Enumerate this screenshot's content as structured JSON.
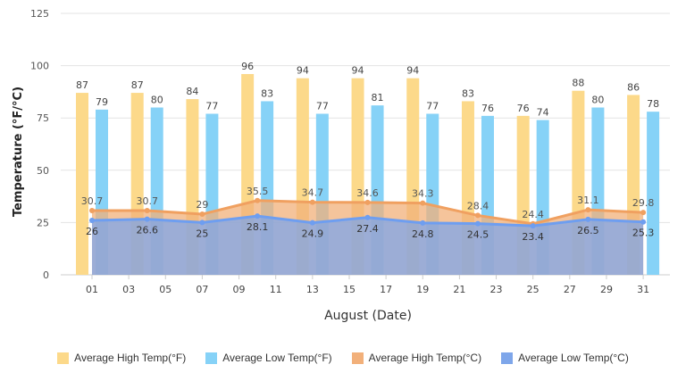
{
  "chart_data": {
    "type": "bar",
    "xlabel": "August (Date)",
    "ylabel": "Temperature (°F/°C)",
    "ylim": [
      0,
      125
    ],
    "yticks": [
      "0",
      "25",
      "50",
      "75",
      "100",
      "125"
    ],
    "xticks": [
      "01",
      "03",
      "05",
      "07",
      "09",
      "11",
      "13",
      "15",
      "17",
      "19",
      "21",
      "23",
      "25",
      "27",
      "29",
      "31"
    ],
    "grid": true,
    "legend_position": "bottom",
    "x": [
      1,
      4,
      7,
      10,
      13,
      16,
      19,
      22,
      25,
      28,
      31
    ],
    "series": [
      {
        "name": "Average High Temp(°F)",
        "kind": "bar",
        "color": "#fcd98a",
        "values": [
          87,
          87,
          84,
          96,
          94,
          94,
          94,
          83,
          76,
          88,
          86
        ]
      },
      {
        "name": "Average Low Temp(°F)",
        "kind": "bar",
        "color": "#86d2f7",
        "values": [
          79,
          80,
          77,
          83,
          77,
          81,
          77,
          76,
          74,
          80,
          78
        ]
      },
      {
        "name": "Average High Temp(°C)",
        "kind": "area",
        "color": "#f2b07a",
        "values": [
          30.7,
          30.7,
          29,
          35.5,
          34.7,
          34.6,
          34.3,
          28.4,
          24.4,
          31.1,
          29.8
        ]
      },
      {
        "name": "Average Low Temp(°C)",
        "kind": "area",
        "color": "#7ea6ea",
        "values": [
          26,
          26.6,
          25,
          28.1,
          24.9,
          27.4,
          24.8,
          24.5,
          23.4,
          26.5,
          25.3
        ]
      }
    ]
  }
}
